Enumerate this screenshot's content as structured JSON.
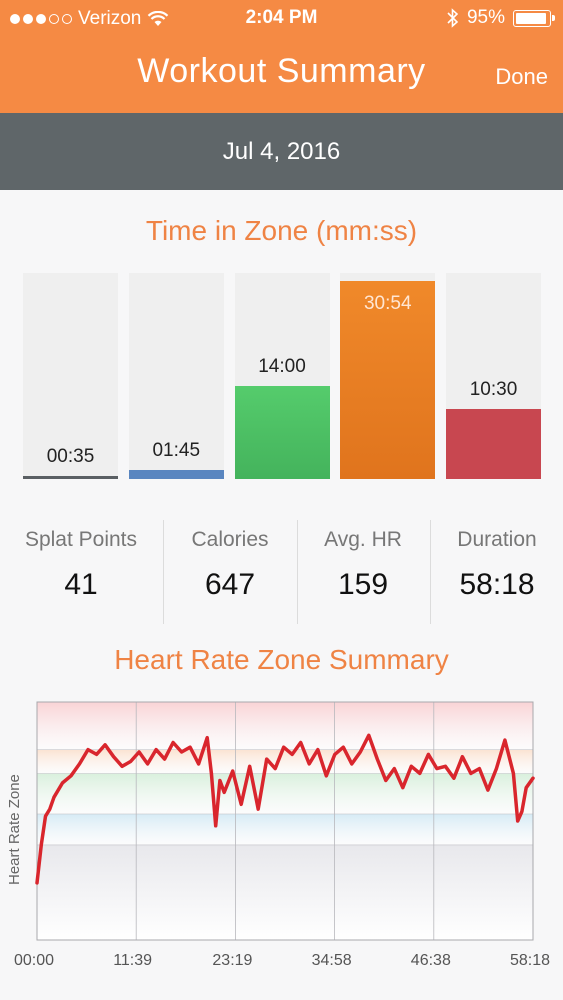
{
  "status_bar": {
    "carrier": "Verizon",
    "time": "2:04 PM",
    "battery": "95%",
    "battery_level": 0.95
  },
  "nav": {
    "title": "Workout Summary",
    "done_label": "Done"
  },
  "date": "Jul 4, 2016",
  "time_in_zone": {
    "title": "Time in Zone (mm:ss)",
    "zones": [
      {
        "label": "00:35",
        "fraction": 0.01,
        "color": "#5a5f63"
      },
      {
        "label": "01:45",
        "fraction": 0.045,
        "color": "#5a86c0"
      },
      {
        "label": "14:00",
        "fraction": 0.45,
        "color": "#4fc066"
      },
      {
        "label": "30:54",
        "fraction": 0.96,
        "color": "#ee7d22"
      },
      {
        "label": "10:30",
        "fraction": 0.34,
        "color": "#c84750"
      }
    ]
  },
  "stats": [
    {
      "label": "Splat Points",
      "value": "41"
    },
    {
      "label": "Calories",
      "value": "647"
    },
    {
      "label": "Avg. HR",
      "value": "159"
    },
    {
      "label": "Duration",
      "value": "58:18"
    }
  ],
  "hr_chart": {
    "title": "Heart Rate Zone Summary",
    "ylabel": "Heart Rate Zone",
    "x_ticks": [
      "00:00",
      "11:39",
      "23:19",
      "34:58",
      "46:38",
      "58:18"
    ]
  },
  "chart_data": {
    "type": "line",
    "title": "Heart Rate Zone Summary",
    "ylabel": "Heart Rate Zone",
    "xlabel": "",
    "x_tick_labels": [
      "00:00",
      "11:39",
      "23:19",
      "34:58",
      "46:38",
      "58:18"
    ],
    "xlim_minutes": [
      0,
      58.3
    ],
    "ylim": [
      0,
      100
    ],
    "zone_bands": [
      {
        "from": 0,
        "to": 40,
        "color": "#e8e8ec"
      },
      {
        "from": 40,
        "to": 53,
        "color": "#d6ebf5"
      },
      {
        "from": 53,
        "to": 70,
        "color": "#d9f0dd"
      },
      {
        "from": 70,
        "to": 80,
        "color": "#fbe3d2"
      },
      {
        "from": 80,
        "to": 100,
        "color": "#f9d3d5"
      }
    ],
    "series": [
      {
        "color": "#d9262d",
        "x": [
          0,
          0.5,
          1,
          1.5,
          2,
          3,
          4,
          5,
          6,
          7,
          8,
          9,
          10,
          11,
          12,
          13,
          14,
          15,
          16,
          17,
          18,
          19,
          20,
          20.5,
          21,
          21.5,
          22,
          23,
          24,
          25,
          26,
          27,
          28,
          29,
          30,
          31,
          32,
          33,
          34,
          35,
          36,
          37,
          38,
          39,
          40,
          41,
          42,
          43,
          44,
          45,
          46,
          47,
          48,
          49,
          50,
          51,
          52,
          53,
          54,
          55,
          56,
          56.5,
          57,
          57.5,
          58.3
        ],
        "y": [
          24,
          40,
          52,
          55,
          60,
          66,
          69,
          74,
          80,
          78,
          82,
          77,
          73,
          75,
          79,
          74,
          80,
          76,
          83,
          79,
          81,
          74,
          85,
          70,
          48,
          67,
          62,
          71,
          57,
          73,
          55,
          76,
          72,
          81,
          78,
          83,
          74,
          80,
          69,
          78,
          81,
          74,
          79,
          86,
          76,
          67,
          72,
          64,
          73,
          70,
          78,
          72,
          73,
          68,
          77,
          70,
          72,
          63,
          72,
          84,
          70,
          50,
          54,
          64,
          68
        ]
      }
    ],
    "grid": true,
    "legend": "none"
  }
}
